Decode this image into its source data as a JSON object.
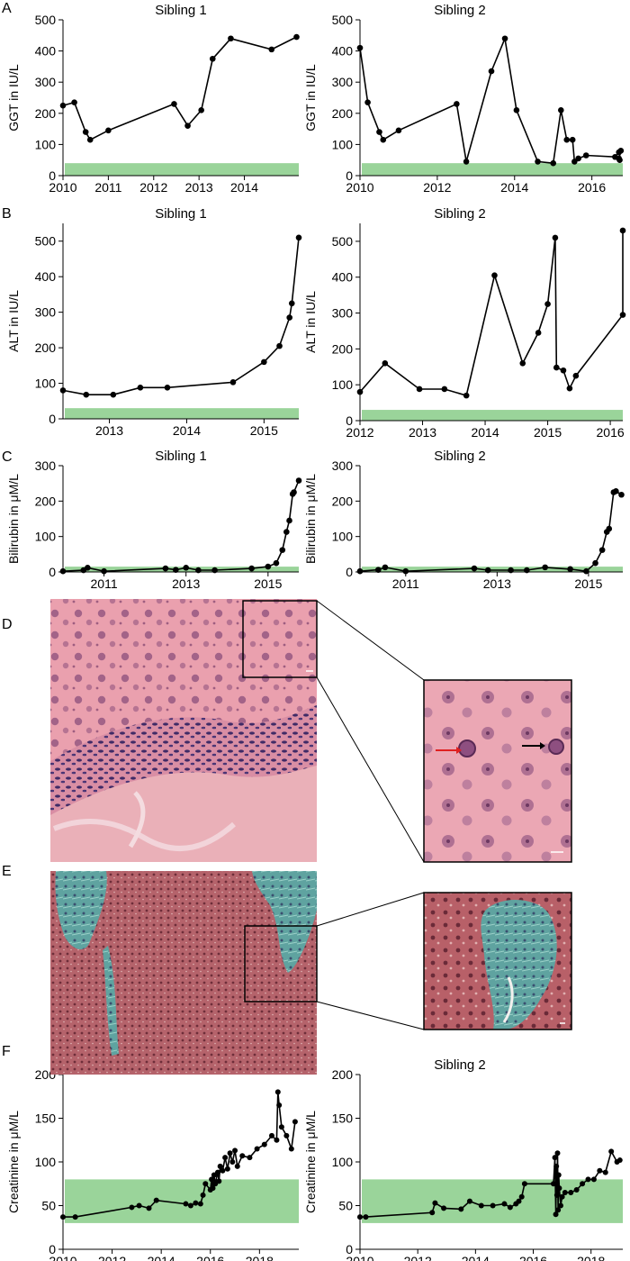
{
  "panel_letters": {
    "A": "A",
    "B": "B",
    "C": "C",
    "D": "D",
    "E": "E",
    "F": "F"
  },
  "colors": {
    "normal_range": "#9ad49a",
    "line": "#000000",
    "he_pink": "#e89cab",
    "trichrome_red": "#b86068",
    "trichrome_green": "#5aa0a0",
    "arrow_red": "#e02020"
  },
  "chart_data": [
    {
      "id": "A1",
      "type": "line",
      "title": "Sibling 1",
      "ylabel": "GGT in IU/L",
      "xlim": [
        2010,
        2015.2
      ],
      "ylim": [
        0,
        500
      ],
      "xticks": [
        2010,
        2011,
        2012,
        2013,
        2014
      ],
      "yticks": [
        0,
        100,
        200,
        300,
        400,
        500
      ],
      "normal_range": [
        0,
        40
      ],
      "series": [
        {
          "x": [
            2010,
            2010.25,
            2010.5,
            2010.6,
            2011,
            2012.45,
            2012.75,
            2013.05,
            2013.3,
            2013.7,
            2014.6,
            2015.15
          ],
          "y": [
            225,
            235,
            140,
            115,
            145,
            230,
            160,
            210,
            375,
            440,
            405,
            445
          ]
        }
      ]
    },
    {
      "id": "A2",
      "type": "line",
      "title": "Sibling 2",
      "ylabel": "GGT in IU/L",
      "xlim": [
        2010,
        2016.8
      ],
      "ylim": [
        0,
        500
      ],
      "xticks": [
        2010,
        2012,
        2014,
        2016
      ],
      "yticks": [
        0,
        100,
        200,
        300,
        400,
        500
      ],
      "normal_range": [
        0,
        40
      ],
      "series": [
        {
          "x": [
            2010,
            2010.2,
            2010.5,
            2010.6,
            2011,
            2012.5,
            2012.75,
            2013.4,
            2013.75,
            2014.05,
            2014.6,
            2015,
            2015.2,
            2015.35,
            2015.5,
            2015.55,
            2015.65,
            2015.85,
            2016.6,
            2016.7,
            2016.75,
            2016.7,
            2016.72
          ],
          "y": [
            410,
            235,
            140,
            115,
            145,
            230,
            45,
            335,
            440,
            210,
            45,
            40,
            210,
            115,
            115,
            45,
            55,
            65,
            60,
            75,
            80,
            55,
            50
          ]
        }
      ]
    },
    {
      "id": "B1",
      "type": "line",
      "title": "Sibling 1",
      "ylabel": "ALT in IU/L",
      "xlim": [
        2012.4,
        2015.45
      ],
      "ylim": [
        0,
        550
      ],
      "xticks": [
        2013,
        2014,
        2015
      ],
      "yticks": [
        0,
        100,
        200,
        300,
        400,
        500
      ],
      "normal_range": [
        0,
        30
      ],
      "series": [
        {
          "x": [
            2012.4,
            2012.7,
            2013.05,
            2013.4,
            2013.75,
            2014.6,
            2015,
            2015.2,
            2015.33,
            2015.36,
            2015.45
          ],
          "y": [
            80,
            68,
            68,
            88,
            88,
            103,
            160,
            205,
            285,
            325,
            510
          ]
        }
      ]
    },
    {
      "id": "B2",
      "type": "line",
      "title": "Sibling 2",
      "ylabel": "ALT in IU/L",
      "xlim": [
        2012,
        2016.2
      ],
      "ylim": [
        0,
        550
      ],
      "xticks": [
        2012,
        2013,
        2014,
        2015,
        2016
      ],
      "yticks": [
        0,
        100,
        200,
        300,
        400,
        500
      ],
      "normal_range": [
        0,
        30
      ],
      "series": [
        {
          "x": [
            2012,
            2012.4,
            2012.95,
            2013.35,
            2013.7,
            2014.15,
            2014.6,
            2014.85,
            2015,
            2015.12,
            2015.14,
            2015.25,
            2015.35,
            2015.45,
            2016.2,
            2016.2
          ],
          "y": [
            80,
            160,
            88,
            88,
            70,
            405,
            160,
            245,
            325,
            510,
            148,
            140,
            90,
            125,
            295,
            530
          ]
        }
      ]
    },
    {
      "id": "C1",
      "type": "line",
      "title": "Sibling 1",
      "ylabel": "Bilirubin in μM/L",
      "xlim": [
        2010,
        2015.75
      ],
      "ylim": [
        0,
        300
      ],
      "xticks": [
        2011,
        2013,
        2015
      ],
      "yticks": [
        0,
        100,
        200,
        300
      ],
      "normal_range": [
        0,
        15
      ],
      "series": [
        {
          "x": [
            2010,
            2010.5,
            2010.6,
            2011,
            2012.5,
            2012.75,
            2013,
            2013.3,
            2013.7,
            2014.6,
            2015,
            2015.2,
            2015.35,
            2015.45,
            2015.52,
            2015.6,
            2015.63,
            2015.75
          ],
          "y": [
            2,
            5,
            12,
            2,
            10,
            6,
            12,
            5,
            5,
            10,
            15,
            25,
            62,
            113,
            145,
            220,
            225,
            258
          ]
        }
      ]
    },
    {
      "id": "C2",
      "type": "line",
      "title": "Sibling 2",
      "ylabel": "Bilirubin in μM/L",
      "xlim": [
        2010,
        2015.75
      ],
      "ylim": [
        0,
        300
      ],
      "xticks": [
        2011,
        2013,
        2015
      ],
      "yticks": [
        0,
        100,
        200,
        300
      ],
      "normal_range": [
        0,
        15
      ],
      "series": [
        {
          "x": [
            2010,
            2010.4,
            2010.55,
            2011,
            2012.5,
            2012.8,
            2013.3,
            2013.65,
            2014.05,
            2014.6,
            2014.95,
            2015.15,
            2015.3,
            2015.4,
            2015.45,
            2015.55,
            2015.6,
            2015.72
          ],
          "y": [
            2,
            6,
            13,
            2,
            10,
            5,
            5,
            5,
            13,
            8,
            2,
            25,
            62,
            113,
            122,
            225,
            228,
            218
          ]
        }
      ]
    },
    {
      "id": "F1",
      "type": "scatter",
      "title": "Sibling 1",
      "ylabel": "Creatinine in μM/L",
      "xlim": [
        2010,
        2019.6
      ],
      "ylim": [
        0,
        200
      ],
      "xticks": [
        2010,
        2012,
        2014,
        2016,
        2018
      ],
      "yticks": [
        0,
        50,
        100,
        150,
        200
      ],
      "normal_range": [
        30,
        80
      ],
      "series": [
        {
          "x": [
            2010,
            2010.5,
            2012.8,
            2013.1,
            2013.5,
            2013.8,
            2015,
            2015.2,
            2015.4,
            2015.6,
            2015.7,
            2015.8,
            2016,
            2016.05,
            2016.1,
            2016.15,
            2016.2,
            2016.3,
            2016.35,
            2016.4,
            2016.5,
            2016.6,
            2016.7,
            2016.8,
            2016.9,
            2017,
            2017.1,
            2017.3,
            2017.6,
            2017.9,
            2018.2,
            2018.5,
            2018.7,
            2018.75,
            2018.8,
            2018.9,
            2019.1,
            2019.3,
            2019.45
          ],
          "y": [
            37,
            37,
            48,
            50,
            47,
            56,
            52,
            50,
            53,
            52,
            62,
            75,
            68,
            80,
            70,
            85,
            75,
            88,
            78,
            95,
            90,
            105,
            92,
            110,
            100,
            113,
            95,
            107,
            105,
            115,
            120,
            130,
            125,
            180,
            165,
            140,
            130,
            115,
            146
          ]
        }
      ]
    },
    {
      "id": "F2",
      "type": "scatter",
      "title": "Sibling 2",
      "ylabel": "Creatinine in μM/L",
      "xlim": [
        2010,
        2019.1
      ],
      "ylim": [
        0,
        200
      ],
      "xticks": [
        2010,
        2012,
        2014,
        2016,
        2018
      ],
      "yticks": [
        0,
        50,
        100,
        150,
        200
      ],
      "normal_range": [
        30,
        80
      ],
      "series": [
        {
          "x": [
            2010,
            2010.2,
            2012.5,
            2012.6,
            2012.9,
            2013.5,
            2013.8,
            2014.2,
            2014.6,
            2015,
            2015.2,
            2015.4,
            2015.5,
            2015.6,
            2015.7,
            2016.7,
            2016.75,
            2016.78,
            2016.8,
            2016.82,
            2016.84,
            2016.86,
            2016.88,
            2016.9,
            2016.95,
            2017,
            2017.1,
            2017.3,
            2017.5,
            2017.7,
            2017.9,
            2018.1,
            2018.3,
            2018.5,
            2018.7,
            2018.9,
            2019
          ],
          "y": [
            37,
            37,
            42,
            53,
            47,
            46,
            55,
            50,
            50,
            52,
            48,
            52,
            55,
            60,
            75,
            75,
            105,
            40,
            95,
            62,
            110,
            45,
            85,
            70,
            50,
            60,
            65,
            65,
            68,
            75,
            80,
            80,
            90,
            88,
            112,
            100,
            102
          ]
        }
      ]
    }
  ]
}
